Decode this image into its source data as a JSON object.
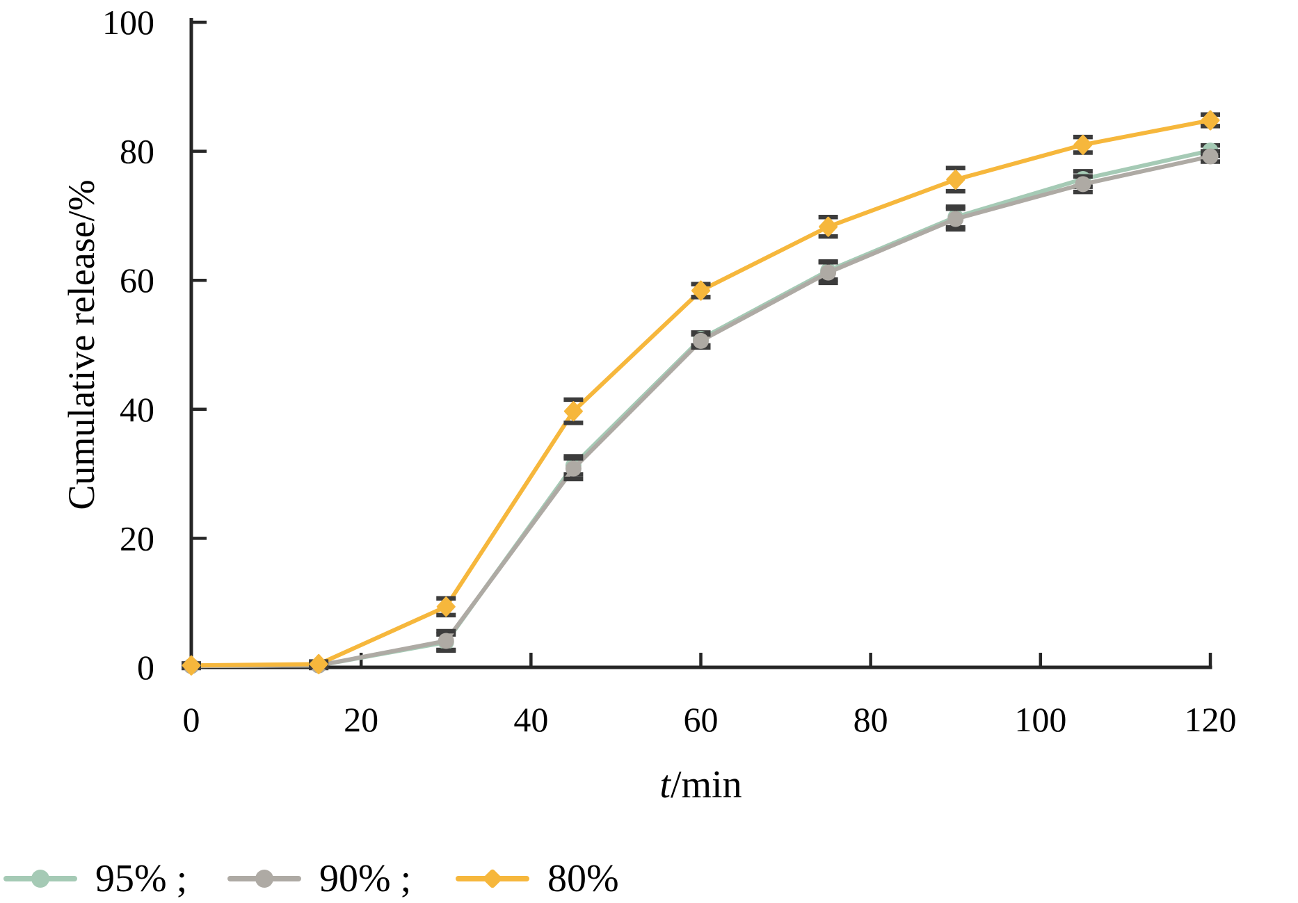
{
  "chart_data": {
    "type": "line",
    "title": "",
    "xlabel": "t/min",
    "ylabel": "Cumulative release/%",
    "xlim": [
      0,
      120
    ],
    "ylim": [
      0,
      100
    ],
    "x_ticks": [
      0,
      20,
      40,
      60,
      80,
      100,
      120
    ],
    "y_ticks": [
      0,
      20,
      40,
      60,
      80,
      100
    ],
    "grid": false,
    "x": [
      0,
      15,
      30,
      45,
      60,
      75,
      90,
      105,
      120
    ],
    "series": [
      {
        "name": "95%",
        "color": "#a5cab5",
        "marker": "circle",
        "values": [
          0.2,
          0.3,
          3.9,
          31.3,
          50.9,
          61.5,
          69.8,
          75.7,
          80.1
        ],
        "errors": [
          0.3,
          0.4,
          1.2,
          1.4,
          1.0,
          1.4,
          1.6,
          1.2,
          0.8
        ]
      },
      {
        "name": "90%",
        "color": "#aeaaa4",
        "marker": "circle",
        "values": [
          0.2,
          0.3,
          4.1,
          30.8,
          50.6,
          61.2,
          69.5,
          74.9,
          79.2
        ],
        "errors": [
          0.3,
          0.4,
          1.5,
          1.6,
          1.0,
          1.6,
          1.6,
          1.2,
          0.8
        ]
      },
      {
        "name": "80%",
        "color": "#f6b73c",
        "marker": "diamond",
        "values": [
          0.3,
          0.5,
          9.4,
          39.7,
          58.4,
          68.3,
          75.6,
          81.0,
          84.8
        ],
        "errors": [
          0.3,
          0.4,
          1.3,
          1.8,
          1.0,
          1.5,
          1.8,
          1.2,
          0.9
        ]
      }
    ],
    "legend": {
      "position": "bottom-left",
      "labels": [
        "95% ;",
        "90% ;",
        "80%"
      ]
    },
    "axis_color": "#262626",
    "error_bar_color": "#3c3c3c",
    "text_color": "#000000"
  }
}
